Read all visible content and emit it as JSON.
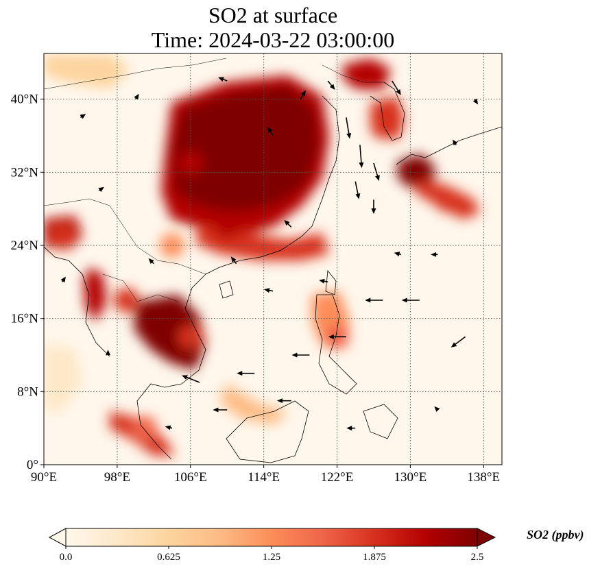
{
  "figure": {
    "title_line1": "SO2 at surface",
    "title_line2": "Time: 2024-03-22 03:00:00"
  },
  "map": {
    "lon_range": [
      90,
      140
    ],
    "lat_range": [
      0,
      45
    ],
    "lon_ticks": [
      "90°E",
      "98°E",
      "106°E",
      "114°E",
      "122°E",
      "130°E",
      "138°E"
    ],
    "lat_ticks": [
      "0°",
      "8°N",
      "16°N",
      "24°N",
      "32°N",
      "40°N"
    ],
    "grid": true,
    "gridline_style": "dotted"
  },
  "colorbar": {
    "label": "SO2 (ppbv)",
    "ticks": [
      "0.0",
      "0.625",
      "1.25",
      "1.875",
      "2.5"
    ],
    "range": [
      0,
      2.5
    ],
    "colormap": "OrRd",
    "colors": [
      "#fff7ec",
      "#fee8c8",
      "#fdd49e",
      "#fdbb84",
      "#fc8d59",
      "#ef6548",
      "#d7301f",
      "#b30000",
      "#7f0000"
    ],
    "extend": "both"
  },
  "chart_data": {
    "type": "heatmap",
    "variable": "SO2 at surface",
    "units": "ppbv",
    "hotspots": [
      {
        "lon": 114,
        "lat": 34,
        "value": 2.5
      },
      {
        "lon": 110,
        "lat": 36,
        "value": 2.5
      },
      {
        "lon": 117,
        "lat": 38,
        "value": 2.5
      },
      {
        "lon": 112,
        "lat": 30,
        "value": 2.5
      },
      {
        "lon": 110,
        "lat": 26,
        "value": 2.2
      },
      {
        "lon": 106,
        "lat": 33,
        "value": 2.3
      },
      {
        "lon": 130,
        "lat": 32,
        "value": 2.5
      },
      {
        "lon": 134,
        "lat": 29,
        "value": 1.8
      },
      {
        "lon": 103,
        "lat": 16,
        "value": 2.4
      },
      {
        "lon": 106,
        "lat": 14,
        "value": 2.0
      },
      {
        "lon": 99,
        "lat": 18,
        "value": 2.0
      },
      {
        "lon": 92,
        "lat": 25,
        "value": 2.0
      },
      {
        "lon": 101,
        "lat": 4,
        "value": 1.6
      },
      {
        "lon": 127,
        "lat": 37,
        "value": 1.8
      },
      {
        "lon": 122,
        "lat": 14,
        "value": 1.5
      },
      {
        "lon": 104,
        "lat": 24,
        "value": 1.4
      }
    ],
    "wind_vectors": [
      {
        "lon": 123,
        "lat": 38,
        "u": 0.2,
        "v": -1.2
      },
      {
        "lon": 124.5,
        "lat": 35,
        "u": 0.1,
        "v": -1.3
      },
      {
        "lon": 126,
        "lat": 33,
        "u": 0.3,
        "v": -1.0
      },
      {
        "lon": 124,
        "lat": 31,
        "u": 0.2,
        "v": -1.0
      },
      {
        "lon": 126,
        "lat": 29,
        "u": 0,
        "v": -0.8
      },
      {
        "lon": 131,
        "lat": 18,
        "u": -1,
        "v": 0
      },
      {
        "lon": 127,
        "lat": 18,
        "u": -1,
        "v": 0
      },
      {
        "lon": 123,
        "lat": 14,
        "u": -1,
        "v": 0
      },
      {
        "lon": 119,
        "lat": 12,
        "u": -1,
        "v": 0
      },
      {
        "lon": 113,
        "lat": 10,
        "u": -1,
        "v": 0
      },
      {
        "lon": 107,
        "lat": 9,
        "u": -1,
        "v": 0.4
      },
      {
        "lon": 136,
        "lat": 14,
        "u": -0.8,
        "v": -0.6
      },
      {
        "lon": 117,
        "lat": 7,
        "u": -0.8,
        "v": 0
      },
      {
        "lon": 110,
        "lat": 6,
        "u": -0.8,
        "v": 0
      },
      {
        "lon": 115,
        "lat": 36,
        "u": -0.3,
        "v": 0.5
      },
      {
        "lon": 118,
        "lat": 40,
        "u": 0.3,
        "v": 0.5
      },
      {
        "lon": 110,
        "lat": 42,
        "u": -0.5,
        "v": 0.2
      },
      {
        "lon": 121,
        "lat": 42,
        "u": 0.4,
        "v": -0.5
      },
      {
        "lon": 128,
        "lat": 42,
        "u": 0.5,
        "v": -0.8
      },
      {
        "lon": 117,
        "lat": 26,
        "u": -0.4,
        "v": 0.4
      },
      {
        "lon": 111,
        "lat": 22,
        "u": -0.3,
        "v": 0.4
      },
      {
        "lon": 102,
        "lat": 22,
        "u": -0.3,
        "v": 0.3
      },
      {
        "lon": 96,
        "lat": 30,
        "u": 0.3,
        "v": 0.2
      },
      {
        "lon": 94,
        "lat": 38,
        "u": 0.3,
        "v": 0.2
      },
      {
        "lon": 100,
        "lat": 40,
        "u": 0.2,
        "v": 0.3
      },
      {
        "lon": 133,
        "lat": 23,
        "u": -0.4,
        "v": 0
      },
      {
        "lon": 129,
        "lat": 23,
        "u": -0.4,
        "v": 0.1
      },
      {
        "lon": 121,
        "lat": 20,
        "u": -0.5,
        "v": 0.1
      },
      {
        "lon": 115,
        "lat": 19,
        "u": -0.5,
        "v": 0.1
      },
      {
        "lon": 97,
        "lat": 12,
        "u": 0,
        "v": 0.3
      },
      {
        "lon": 104,
        "lat": 4,
        "u": -0.4,
        "v": 0.1
      },
      {
        "lon": 124,
        "lat": 4,
        "u": -0.5,
        "v": 0
      },
      {
        "lon": 133,
        "lat": 6,
        "u": -0.2,
        "v": 0.2
      },
      {
        "lon": 92,
        "lat": 20,
        "u": 0.2,
        "v": 0.3
      },
      {
        "lon": 137,
        "lat": 40,
        "u": 0.2,
        "v": -0.3
      },
      {
        "lon": 135,
        "lat": 35,
        "u": -0.2,
        "v": 0.3
      }
    ]
  }
}
